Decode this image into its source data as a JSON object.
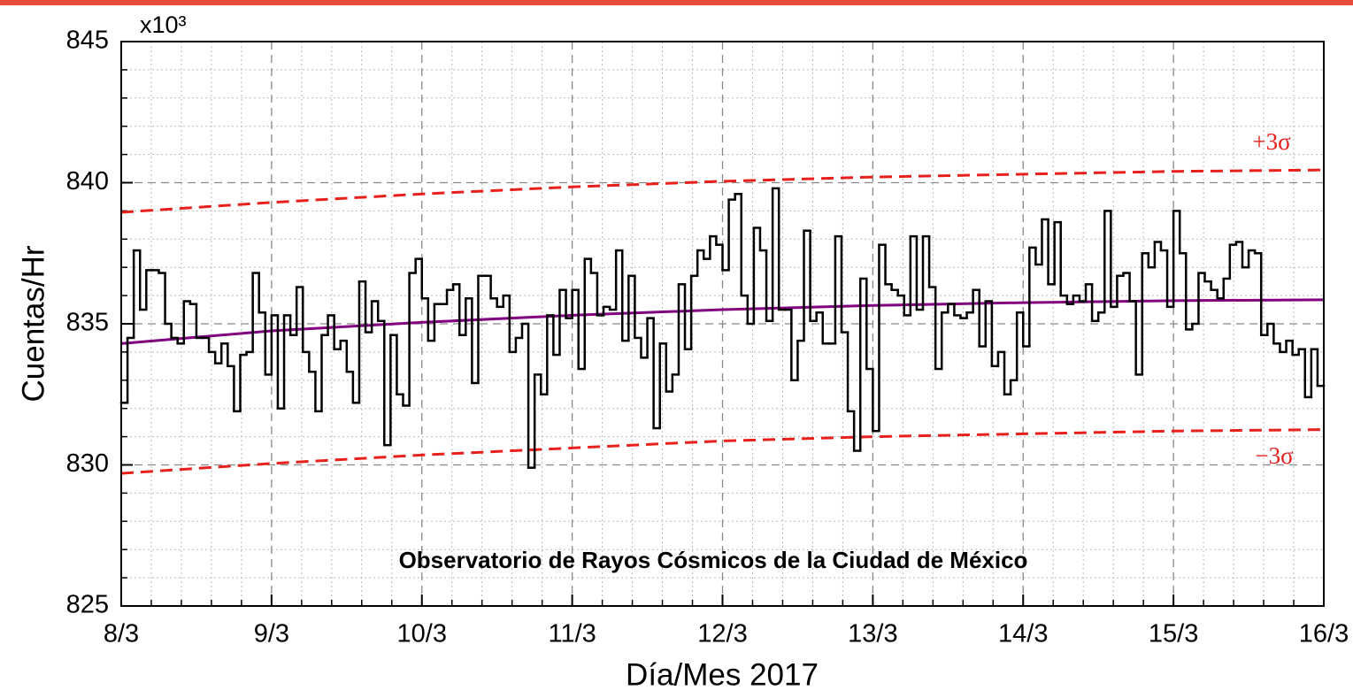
{
  "chart_data": {
    "type": "step",
    "title": "Observatorio de Rayos Cósmicos de la Ciudad de México",
    "x_label": "Día/Mes 2017",
    "y_label": "Cuentas/Hr",
    "y_multiplier": "x10³",
    "xlim": [
      0,
      192
    ],
    "xticks": [
      {
        "value": 0,
        "label": "8/3"
      },
      {
        "value": 24,
        "label": "9/3"
      },
      {
        "value": 48,
        "label": "10/3"
      },
      {
        "value": 72,
        "label": "11/3"
      },
      {
        "value": 96,
        "label": "12/3"
      },
      {
        "value": 120,
        "label": "13/3"
      },
      {
        "value": 144,
        "label": "14/3"
      },
      {
        "value": 168,
        "label": "15/3"
      },
      {
        "value": 192,
        "label": "16/3"
      }
    ],
    "ylim": [
      825,
      845
    ],
    "yticks": [
      825,
      830,
      835,
      840,
      845
    ],
    "grid": true,
    "x": [
      0,
      1,
      2,
      3,
      4,
      5,
      6,
      7,
      8,
      9,
      10,
      11,
      12,
      13,
      14,
      15,
      16,
      17,
      18,
      19,
      20,
      21,
      22,
      23,
      24,
      25,
      26,
      27,
      28,
      29,
      30,
      31,
      32,
      33,
      34,
      35,
      36,
      37,
      38,
      39,
      40,
      41,
      42,
      43,
      44,
      45,
      46,
      47,
      48,
      49,
      50,
      51,
      52,
      53,
      54,
      55,
      56,
      57,
      58,
      59,
      60,
      61,
      62,
      63,
      64,
      65,
      66,
      67,
      68,
      69,
      70,
      71,
      72,
      73,
      74,
      75,
      76,
      77,
      78,
      79,
      80,
      81,
      82,
      83,
      84,
      85,
      86,
      87,
      88,
      89,
      90,
      91,
      92,
      93,
      94,
      95,
      96,
      97,
      98,
      99,
      100,
      101,
      102,
      103,
      104,
      105,
      106,
      107,
      108,
      109,
      110,
      111,
      112,
      113,
      114,
      115,
      116,
      117,
      118,
      119,
      120,
      121,
      122,
      123,
      124,
      125,
      126,
      127,
      128,
      129,
      130,
      131,
      132,
      133,
      134,
      135,
      136,
      137,
      138,
      139,
      140,
      141,
      142,
      143,
      144,
      145,
      146,
      147,
      148,
      149,
      150,
      151,
      152,
      153,
      154,
      155,
      156,
      157,
      158,
      159,
      160,
      161,
      162,
      163,
      164,
      165,
      166,
      167,
      168,
      169,
      170,
      171,
      172,
      173,
      174,
      175,
      176,
      177,
      178,
      179,
      180,
      181,
      182,
      183,
      184,
      185,
      186,
      187,
      188,
      189,
      190,
      191
    ],
    "series": [
      {
        "color": "#000000",
        "values": [
          832.2,
          834.5,
          837.6,
          835.5,
          836.9,
          836.9,
          836.8,
          835.0,
          834.5,
          834.3,
          835.8,
          835.7,
          834.5,
          834.5,
          834.0,
          833.6,
          834.3,
          833.5,
          831.9,
          833.9,
          834.0,
          836.8,
          835.4,
          833.2,
          835.3,
          832.0,
          835.3,
          834.6,
          836.3,
          834.0,
          833.3,
          831.9,
          834.6,
          835.3,
          834.1,
          834.4,
          833.3,
          832.2,
          836.5,
          834.7,
          835.8,
          835.1,
          830.7,
          834.6,
          832.5,
          832.1,
          836.8,
          837.3,
          835.9,
          834.4,
          835.7,
          835.7,
          836.2,
          836.4,
          834.6,
          835.9,
          832.9,
          836.7,
          836.7,
          835.9,
          835.6,
          836.0,
          834.0,
          834.5,
          835.0,
          829.9,
          833.2,
          832.5,
          835.3,
          833.9,
          836.2,
          835.2,
          836.2,
          833.4,
          837.3,
          836.8,
          835.3,
          835.6,
          835.5,
          837.6,
          834.4,
          836.7,
          834.5,
          833.8,
          835.2,
          831.3,
          834.3,
          832.6,
          833.2,
          836.4,
          834.1,
          836.7,
          837.6,
          837.3,
          838.1,
          837.8,
          836.9,
          839.4,
          839.6,
          836.0,
          835.0,
          838.4,
          837.6,
          835.1,
          839.8,
          835.5,
          835.5,
          833.0,
          834.4,
          838.3,
          835.1,
          835.4,
          834.3,
          834.3,
          838.1,
          834.7,
          831.9,
          830.5,
          836.6,
          833.4,
          831.2,
          837.8,
          836.4,
          836.2,
          836.0,
          835.3,
          838.1,
          835.5,
          838.1,
          836.3,
          833.4,
          835.4,
          835.7,
          835.3,
          835.2,
          835.4,
          836.2,
          834.2,
          835.8,
          833.5,
          834.0,
          832.5,
          833.0,
          835.4,
          834.2,
          837.7,
          837.1,
          838.7,
          836.4,
          838.6,
          836.0,
          835.7,
          836.0,
          835.8,
          836.4,
          835.1,
          835.4,
          839.0,
          835.6,
          836.7,
          836.8,
          835.8,
          833.2,
          837.5,
          837.0,
          837.9,
          837.6,
          835.6,
          839.0,
          837.5,
          834.8,
          835.0,
          836.8,
          836.5,
          836.2,
          835.9,
          836.6,
          837.8,
          837.9,
          837.0,
          837.6,
          837.5,
          834.6,
          835.0,
          834.3,
          834.0,
          834.4,
          833.9,
          834.1,
          832.4,
          834.1,
          832.8
        ]
      }
    ],
    "lines": [
      {
        "color": "#800080",
        "dashed": false,
        "x": [
          0,
          24,
          48,
          72,
          96,
          120,
          144,
          168,
          192
        ],
        "values": [
          834.3,
          834.75,
          835.05,
          835.3,
          835.5,
          835.65,
          835.75,
          835.82,
          835.85
        ]
      },
      {
        "color": "#e8201c",
        "dashed": true,
        "x": [
          0,
          24,
          48,
          72,
          96,
          120,
          144,
          168,
          192
        ],
        "values": [
          838.95,
          839.3,
          839.6,
          839.85,
          840.05,
          840.2,
          840.3,
          840.4,
          840.45
        ]
      },
      {
        "color": "#e8201c",
        "dashed": true,
        "x": [
          0,
          24,
          48,
          72,
          96,
          120,
          144,
          168,
          192
        ],
        "values": [
          829.7,
          830.05,
          830.35,
          830.6,
          830.85,
          831.0,
          831.1,
          831.2,
          831.25
        ]
      }
    ],
    "annotations": [
      {
        "text": "+3σ",
        "color": "#e8201c"
      },
      {
        "text": "−3σ",
        "color": "#e8201c"
      }
    ]
  }
}
